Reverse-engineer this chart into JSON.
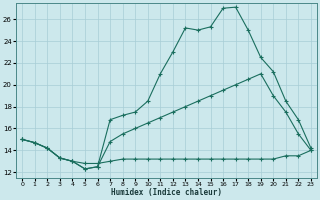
{
  "xlabel": "Humidex (Indice chaleur)",
  "xlim": [
    -0.5,
    23.5
  ],
  "ylim": [
    11.5,
    27.5
  ],
  "yticks": [
    12,
    14,
    16,
    18,
    20,
    22,
    24,
    26
  ],
  "xticks": [
    0,
    1,
    2,
    3,
    4,
    5,
    6,
    7,
    8,
    9,
    10,
    11,
    12,
    13,
    14,
    15,
    16,
    17,
    18,
    19,
    20,
    21,
    22,
    23
  ],
  "bg_color": "#cce8ec",
  "grid_color": "#a8cdd6",
  "line_color": "#1a6e5e",
  "line1": {
    "x": [
      0,
      1,
      2,
      3,
      4,
      5,
      6,
      7,
      8,
      9,
      10,
      11,
      12,
      13,
      14,
      15,
      16,
      17,
      18,
      19,
      20,
      21,
      22,
      23
    ],
    "y": [
      15,
      14.7,
      14.2,
      13.3,
      13.0,
      12.3,
      12.5,
      16.8,
      17.2,
      17.5,
      18.5,
      21.0,
      23.0,
      25.2,
      25.0,
      25.3,
      27.0,
      27.1,
      25.0,
      22.5,
      21.2,
      18.5,
      16.8,
      14.2
    ]
  },
  "line2": {
    "x": [
      0,
      1,
      2,
      3,
      4,
      5,
      6,
      7,
      8,
      9,
      10,
      11,
      12,
      13,
      14,
      15,
      16,
      17,
      18,
      19,
      20,
      21,
      22,
      23
    ],
    "y": [
      15,
      14.7,
      14.2,
      13.3,
      13.0,
      12.3,
      12.5,
      14.8,
      15.5,
      16.0,
      16.5,
      17.0,
      17.5,
      18.0,
      18.5,
      19.0,
      19.5,
      20.0,
      20.5,
      21.0,
      19.0,
      17.5,
      15.5,
      14.0
    ]
  },
  "line3": {
    "x": [
      0,
      1,
      2,
      3,
      4,
      5,
      6,
      7,
      8,
      9,
      10,
      11,
      12,
      13,
      14,
      15,
      16,
      17,
      18,
      19,
      20,
      21,
      22,
      23
    ],
    "y": [
      15,
      14.7,
      14.2,
      13.3,
      13.0,
      12.8,
      12.8,
      13.0,
      13.2,
      13.2,
      13.2,
      13.2,
      13.2,
      13.2,
      13.2,
      13.2,
      13.2,
      13.2,
      13.2,
      13.2,
      13.2,
      13.5,
      13.5,
      14.0
    ]
  },
  "figsize": [
    3.2,
    2.0
  ],
  "dpi": 100
}
